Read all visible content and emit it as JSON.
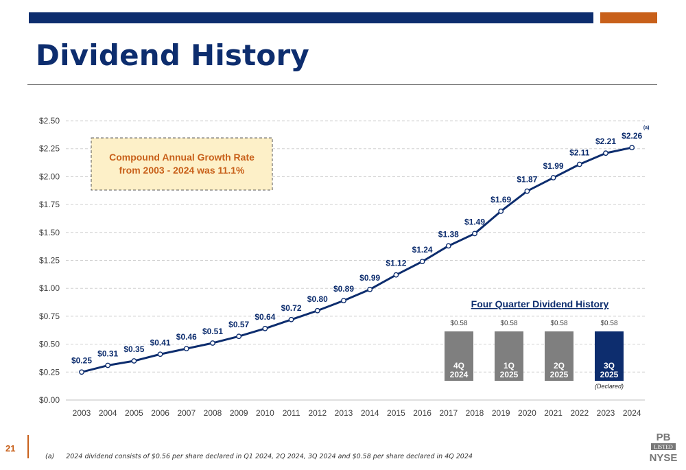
{
  "slide": {
    "title": "Dividend History",
    "page_number": "21",
    "footnote_marker": "(a)",
    "footnote_text": "2024 dividend consists of $0.56 per share declared in Q1 2024, 2Q 2024, 3Q 2024 and $0.58 per share declared in 4Q 2024",
    "logo": {
      "ticker": "PB",
      "listed": "LISTED",
      "exchange": "NYSE"
    }
  },
  "colors": {
    "navy": "#0d2d6e",
    "orange": "#c8601a",
    "callout_bg": "#fdf0c8",
    "bar_gray": "#7f7f7f"
  },
  "chart_data": [
    {
      "type": "line",
      "title": "",
      "x": [
        "2003",
        "2004",
        "2005",
        "2006",
        "2007",
        "2008",
        "2009",
        "2010",
        "2011",
        "2012",
        "2013",
        "2014",
        "2015",
        "2016",
        "2017",
        "2018",
        "2019",
        "2020",
        "2021",
        "2022",
        "2023",
        "2024"
      ],
      "series": [
        {
          "values": [
            0.25,
            0.31,
            0.35,
            0.41,
            0.46,
            0.51,
            0.57,
            0.64,
            0.72,
            0.8,
            0.89,
            0.99,
            1.12,
            1.24,
            1.38,
            1.49,
            1.69,
            1.87,
            1.99,
            2.11,
            2.21,
            2.26
          ],
          "labels": [
            "$0.25",
            "$0.31",
            "$0.35",
            "$0.41",
            "$0.46",
            "$0.51",
            "$0.57",
            "$0.64",
            "$0.72",
            "$0.80",
            "$0.89",
            "$0.99",
            "$1.12",
            "$1.24",
            "$1.38",
            "$1.49",
            "$1.69",
            "$1.87",
            "$1.99",
            "$2.11",
            "$2.21",
            "$2.26"
          ]
        }
      ],
      "ylim": [
        0,
        2.5
      ],
      "yticks": [
        "$0.00",
        "$0.25",
        "$0.50",
        "$0.75",
        "$1.00",
        "$1.25",
        "$1.50",
        "$1.75",
        "$2.00",
        "$2.25",
        "$2.50"
      ],
      "grid": "horizontal dashed",
      "last_point_note": "(a)",
      "callout": [
        "Compound Annual Growth Rate",
        "from 2003 - 2024 was 11.1%"
      ]
    },
    {
      "type": "bar",
      "title": "Four Quarter Dividend History",
      "categories": [
        [
          "4Q",
          "2024"
        ],
        [
          "1Q",
          "2025"
        ],
        [
          "2Q",
          "2025"
        ],
        [
          "3Q",
          "2025"
        ]
      ],
      "values": [
        0.58,
        0.58,
        0.58,
        0.58
      ],
      "labels": [
        "$0.58",
        "$0.58",
        "$0.58",
        "$0.58"
      ],
      "highlight_index": 3,
      "highlight_note": "(Declared)"
    }
  ]
}
